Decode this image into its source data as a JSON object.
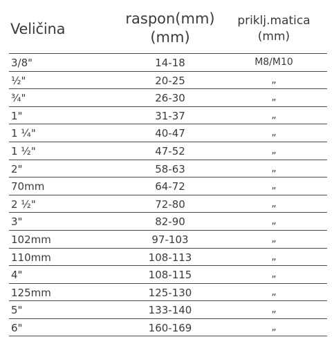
{
  "table": {
    "headers": {
      "size": "Veličina",
      "range_line1": "raspon(mm)",
      "range_line2": "(mm)",
      "nut_line1": "priklj.matica",
      "nut_line2": "(mm)"
    },
    "rows": [
      {
        "size": "3/8\"",
        "range": "14-18",
        "nut": "M8/M10"
      },
      {
        "size": "½\"",
        "range": "20-25",
        "nut": "„"
      },
      {
        "size": "¾\"",
        "range": "26-30",
        "nut": "„"
      },
      {
        "size": "1\"",
        "range": "31-37",
        "nut": "„"
      },
      {
        "size": "1 ¼\"",
        "range": "40-47",
        "nut": "„"
      },
      {
        "size": "1 ½\"",
        "range": "47-52",
        "nut": "„"
      },
      {
        "size": "2\"",
        "range": "58-63",
        "nut": "„"
      },
      {
        "size": "70mm",
        "range": "64-72",
        "nut": "„"
      },
      {
        "size": "2 ½\"",
        "range": "72-80",
        "nut": "„"
      },
      {
        "size": "3\"",
        "range": "82-90",
        "nut": "„"
      },
      {
        "size": "102mm",
        "range": "97-103",
        "nut": "„"
      },
      {
        "size": "110mm",
        "range": "108-113",
        "nut": "„"
      },
      {
        "size": "4\"",
        "range": "108-115",
        "nut": "„"
      },
      {
        "size": "125mm",
        "range": "125-130",
        "nut": "„"
      },
      {
        "size": "5\"",
        "range": "133-140",
        "nut": "„"
      },
      {
        "size": "6\"",
        "range": "160-169",
        "nut": "„"
      }
    ]
  }
}
